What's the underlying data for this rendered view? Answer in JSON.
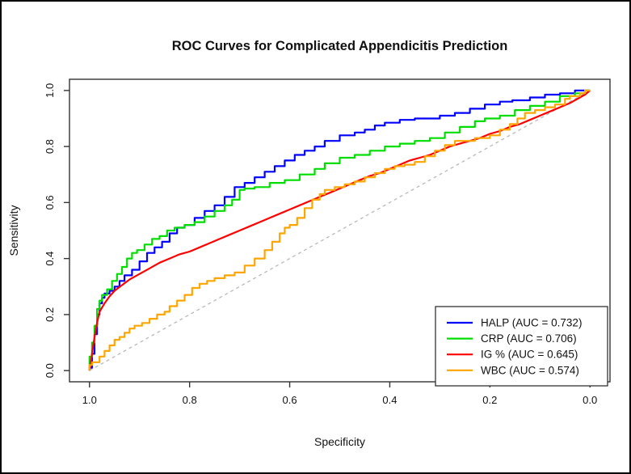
{
  "figure": {
    "title": "ROC Curves for Complicated Appendicitis Prediction",
    "background": "#ffffff",
    "border_color": "#000000",
    "axis_color": "#333333"
  },
  "chart_data": {
    "type": "line",
    "subtype": "roc-curves",
    "title": "ROC Curves for Complicated Appendicitis Prediction",
    "xlabel": "Specificity",
    "ylabel": "Sensitivity",
    "x_reversed": true,
    "xlim": [
      1.0,
      0.0
    ],
    "ylim": [
      0.0,
      1.0
    ],
    "grid": false,
    "x_ticks": {
      "labels": [
        "1.0",
        "0.8",
        "0.6",
        "0.4",
        "0.2",
        "0.0"
      ],
      "values": [
        1.0,
        0.8,
        0.6,
        0.4,
        0.2,
        0.0
      ]
    },
    "y_ticks": {
      "labels": [
        "0.0",
        "0.2",
        "0.4",
        "0.6",
        "0.8",
        "1.0"
      ],
      "values": [
        0.0,
        0.2,
        0.4,
        0.6,
        0.8,
        1.0
      ]
    },
    "reference_line": {
      "style": "dashed",
      "color": "#b3b3b3",
      "from": [
        1.0,
        0.0
      ],
      "to": [
        0.0,
        1.0
      ]
    },
    "legend": {
      "position": "bottom-right",
      "entries": [
        {
          "label": "HALP (AUC = 0.732)",
          "color": "#0000ff"
        },
        {
          "label": "CRP (AUC = 0.706)",
          "color": "#00dd00"
        },
        {
          "label": "IG % (AUC = 0.645)",
          "color": "#ff0000"
        },
        {
          "label": "WBC (AUC = 0.574)",
          "color": "#ffa500"
        }
      ]
    },
    "series": [
      {
        "name": "HALP",
        "auc": 0.732,
        "color": "#0000ff",
        "style": "step",
        "points": [
          [
            1.0,
            0.0
          ],
          [
            0.995,
            0.01
          ],
          [
            0.99,
            0.06
          ],
          [
            0.985,
            0.13
          ],
          [
            0.98,
            0.2
          ],
          [
            0.975,
            0.24
          ],
          [
            0.97,
            0.26
          ],
          [
            0.96,
            0.275
          ],
          [
            0.95,
            0.285
          ],
          [
            0.94,
            0.3
          ],
          [
            0.93,
            0.32
          ],
          [
            0.915,
            0.34
          ],
          [
            0.9,
            0.36
          ],
          [
            0.885,
            0.39
          ],
          [
            0.87,
            0.42
          ],
          [
            0.855,
            0.44
          ],
          [
            0.84,
            0.46
          ],
          [
            0.825,
            0.49
          ],
          [
            0.81,
            0.51
          ],
          [
            0.79,
            0.52
          ],
          [
            0.77,
            0.545
          ],
          [
            0.75,
            0.57
          ],
          [
            0.73,
            0.59
          ],
          [
            0.71,
            0.62
          ],
          [
            0.69,
            0.655
          ],
          [
            0.67,
            0.67
          ],
          [
            0.65,
            0.69
          ],
          [
            0.63,
            0.71
          ],
          [
            0.61,
            0.73
          ],
          [
            0.59,
            0.75
          ],
          [
            0.57,
            0.77
          ],
          [
            0.55,
            0.785
          ],
          [
            0.53,
            0.8
          ],
          [
            0.5,
            0.82
          ],
          [
            0.47,
            0.84
          ],
          [
            0.45,
            0.85
          ],
          [
            0.43,
            0.86
          ],
          [
            0.41,
            0.875
          ],
          [
            0.38,
            0.885
          ],
          [
            0.35,
            0.895
          ],
          [
            0.3,
            0.9
          ],
          [
            0.27,
            0.91
          ],
          [
            0.24,
            0.92
          ],
          [
            0.21,
            0.935
          ],
          [
            0.18,
            0.95
          ],
          [
            0.155,
            0.96
          ],
          [
            0.12,
            0.965
          ],
          [
            0.09,
            0.975
          ],
          [
            0.06,
            0.985
          ],
          [
            0.03,
            0.99
          ],
          [
            0.01,
            1.0
          ],
          [
            0.0,
            1.0
          ]
        ]
      },
      {
        "name": "CRP",
        "auc": 0.706,
        "color": "#00dd00",
        "style": "step",
        "points": [
          [
            1.0,
            0.0
          ],
          [
            0.995,
            0.05
          ],
          [
            0.99,
            0.1
          ],
          [
            0.985,
            0.16
          ],
          [
            0.98,
            0.22
          ],
          [
            0.975,
            0.25
          ],
          [
            0.965,
            0.27
          ],
          [
            0.955,
            0.29
          ],
          [
            0.945,
            0.32
          ],
          [
            0.935,
            0.345
          ],
          [
            0.925,
            0.37
          ],
          [
            0.915,
            0.4
          ],
          [
            0.905,
            0.42
          ],
          [
            0.89,
            0.43
          ],
          [
            0.875,
            0.45
          ],
          [
            0.86,
            0.47
          ],
          [
            0.845,
            0.48
          ],
          [
            0.83,
            0.5
          ],
          [
            0.81,
            0.51
          ],
          [
            0.79,
            0.52
          ],
          [
            0.77,
            0.53
          ],
          [
            0.75,
            0.55
          ],
          [
            0.73,
            0.57
          ],
          [
            0.715,
            0.59
          ],
          [
            0.7,
            0.61
          ],
          [
            0.69,
            0.645
          ],
          [
            0.67,
            0.65
          ],
          [
            0.64,
            0.655
          ],
          [
            0.61,
            0.67
          ],
          [
            0.58,
            0.68
          ],
          [
            0.55,
            0.7
          ],
          [
            0.53,
            0.72
          ],
          [
            0.5,
            0.74
          ],
          [
            0.47,
            0.76
          ],
          [
            0.44,
            0.77
          ],
          [
            0.41,
            0.785
          ],
          [
            0.38,
            0.8
          ],
          [
            0.35,
            0.81
          ],
          [
            0.32,
            0.82
          ],
          [
            0.29,
            0.83
          ],
          [
            0.26,
            0.85
          ],
          [
            0.23,
            0.87
          ],
          [
            0.21,
            0.89
          ],
          [
            0.18,
            0.9
          ],
          [
            0.15,
            0.91
          ],
          [
            0.12,
            0.93
          ],
          [
            0.09,
            0.945
          ],
          [
            0.06,
            0.96
          ],
          [
            0.03,
            0.98
          ],
          [
            0.01,
            0.99
          ],
          [
            0.0,
            1.0
          ]
        ]
      },
      {
        "name": "IG %",
        "auc": 0.645,
        "color": "#ff0000",
        "style": "smooth",
        "points": [
          [
            1.0,
            0.0
          ],
          [
            0.995,
            0.06
          ],
          [
            0.99,
            0.12
          ],
          [
            0.985,
            0.17
          ],
          [
            0.98,
            0.21
          ],
          [
            0.97,
            0.24
          ],
          [
            0.96,
            0.265
          ],
          [
            0.95,
            0.285
          ],
          [
            0.935,
            0.305
          ],
          [
            0.92,
            0.325
          ],
          [
            0.9,
            0.345
          ],
          [
            0.88,
            0.365
          ],
          [
            0.86,
            0.385
          ],
          [
            0.84,
            0.4
          ],
          [
            0.82,
            0.415
          ],
          [
            0.8,
            0.425
          ],
          [
            0.78,
            0.44
          ],
          [
            0.76,
            0.455
          ],
          [
            0.74,
            0.47
          ],
          [
            0.72,
            0.485
          ],
          [
            0.7,
            0.5
          ],
          [
            0.68,
            0.515
          ],
          [
            0.66,
            0.53
          ],
          [
            0.64,
            0.545
          ],
          [
            0.62,
            0.56
          ],
          [
            0.6,
            0.575
          ],
          [
            0.58,
            0.59
          ],
          [
            0.56,
            0.605
          ],
          [
            0.54,
            0.62
          ],
          [
            0.52,
            0.635
          ],
          [
            0.5,
            0.65
          ],
          [
            0.48,
            0.665
          ],
          [
            0.46,
            0.68
          ],
          [
            0.44,
            0.695
          ],
          [
            0.42,
            0.705
          ],
          [
            0.4,
            0.72
          ],
          [
            0.38,
            0.735
          ],
          [
            0.36,
            0.75
          ],
          [
            0.34,
            0.76
          ],
          [
            0.32,
            0.77
          ],
          [
            0.3,
            0.785
          ],
          [
            0.28,
            0.8
          ],
          [
            0.26,
            0.81
          ],
          [
            0.24,
            0.82
          ],
          [
            0.22,
            0.83
          ],
          [
            0.2,
            0.845
          ],
          [
            0.18,
            0.855
          ],
          [
            0.16,
            0.87
          ],
          [
            0.14,
            0.88
          ],
          [
            0.12,
            0.895
          ],
          [
            0.1,
            0.91
          ],
          [
            0.08,
            0.925
          ],
          [
            0.06,
            0.94
          ],
          [
            0.04,
            0.955
          ],
          [
            0.02,
            0.975
          ],
          [
            0.01,
            0.985
          ],
          [
            0.0,
            1.0
          ]
        ]
      },
      {
        "name": "WBC",
        "auc": 0.574,
        "color": "#ffa500",
        "style": "step",
        "points": [
          [
            1.0,
            0.0
          ],
          [
            0.995,
            0.02
          ],
          [
            0.98,
            0.03
          ],
          [
            0.97,
            0.05
          ],
          [
            0.96,
            0.07
          ],
          [
            0.95,
            0.09
          ],
          [
            0.94,
            0.11
          ],
          [
            0.93,
            0.12
          ],
          [
            0.92,
            0.135
          ],
          [
            0.91,
            0.15
          ],
          [
            0.895,
            0.16
          ],
          [
            0.88,
            0.17
          ],
          [
            0.865,
            0.185
          ],
          [
            0.85,
            0.2
          ],
          [
            0.84,
            0.21
          ],
          [
            0.825,
            0.23
          ],
          [
            0.81,
            0.25
          ],
          [
            0.795,
            0.27
          ],
          [
            0.78,
            0.295
          ],
          [
            0.765,
            0.31
          ],
          [
            0.75,
            0.32
          ],
          [
            0.73,
            0.33
          ],
          [
            0.71,
            0.34
          ],
          [
            0.69,
            0.35
          ],
          [
            0.67,
            0.375
          ],
          [
            0.65,
            0.4
          ],
          [
            0.635,
            0.43
          ],
          [
            0.62,
            0.46
          ],
          [
            0.61,
            0.49
          ],
          [
            0.6,
            0.51
          ],
          [
            0.585,
            0.52
          ],
          [
            0.57,
            0.545
          ],
          [
            0.555,
            0.58
          ],
          [
            0.54,
            0.61
          ],
          [
            0.53,
            0.63
          ],
          [
            0.51,
            0.645
          ],
          [
            0.49,
            0.655
          ],
          [
            0.47,
            0.665
          ],
          [
            0.45,
            0.675
          ],
          [
            0.43,
            0.69
          ],
          [
            0.41,
            0.705
          ],
          [
            0.39,
            0.72
          ],
          [
            0.37,
            0.73
          ],
          [
            0.35,
            0.735
          ],
          [
            0.33,
            0.745
          ],
          [
            0.31,
            0.765
          ],
          [
            0.29,
            0.785
          ],
          [
            0.27,
            0.805
          ],
          [
            0.25,
            0.82
          ],
          [
            0.23,
            0.82
          ],
          [
            0.2,
            0.83
          ],
          [
            0.18,
            0.84
          ],
          [
            0.16,
            0.86
          ],
          [
            0.145,
            0.88
          ],
          [
            0.13,
            0.9
          ],
          [
            0.11,
            0.92
          ],
          [
            0.09,
            0.93
          ],
          [
            0.07,
            0.94
          ],
          [
            0.05,
            0.95
          ],
          [
            0.04,
            0.97
          ],
          [
            0.02,
            0.98
          ],
          [
            0.01,
            0.99
          ],
          [
            0.0,
            1.0
          ]
        ]
      }
    ]
  }
}
